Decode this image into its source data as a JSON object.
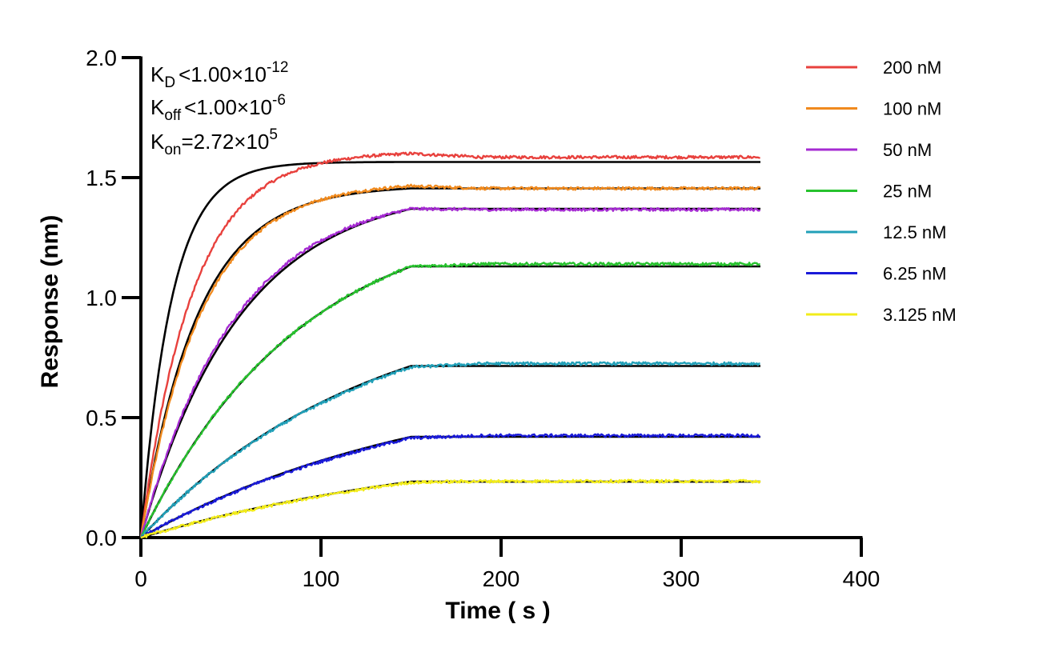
{
  "chart_data": {
    "type": "line",
    "title": "",
    "xlabel": "Time ( s )",
    "ylabel": "Response (nm)",
    "xlim": [
      0,
      400
    ],
    "ylim": [
      0,
      2.0
    ],
    "x_ticks": [
      0,
      100,
      200,
      300,
      400
    ],
    "x_tick_labels": [
      "0",
      "100",
      "200",
      "300",
      "400"
    ],
    "y_ticks": [
      0,
      0.5,
      1.0,
      1.5,
      2.0
    ],
    "y_tick_labels": [
      "0.0",
      "0.5",
      "1.0",
      "1.5",
      "2.0"
    ],
    "grid": false,
    "legend_position": "top-right",
    "association_end": 150,
    "x_end": 344,
    "annotations": {
      "kd": {
        "main": "K",
        "sub": "D",
        "rel": "<",
        "value": "1.00×10",
        "exp": "-12"
      },
      "koff": {
        "main": "K",
        "sub": "off",
        "rel": "<",
        "value": "1.00×10",
        "exp": "-6"
      },
      "kon": {
        "main": "K",
        "sub": "on",
        "rel": "=",
        "value": "2.72×10",
        "exp": "5"
      }
    },
    "fit_color": "#000000",
    "series": [
      {
        "name": "200 nM",
        "color": "#e8413d",
        "plateau_fit": 1.565,
        "plateau_data": 1.585,
        "k_fit": 0.0589,
        "k_data": 0.035,
        "data_peak": 1.6
      },
      {
        "name": "100 nM",
        "color": "#f08a1e",
        "plateau_fit": 1.455,
        "plateau_data": 1.455,
        "k_fit": 0.0317,
        "k_data": 0.03,
        "data_peak": 1.465
      },
      {
        "name": "50 nM",
        "color": "#a52bd2",
        "plateau_fit": 1.37,
        "plateau_data": 1.367,
        "k_fit": 0.0181,
        "k_data": 0.019,
        "data_peak": 1.37
      },
      {
        "name": "25 nM",
        "color": "#27c22e",
        "plateau_fit": 1.13,
        "plateau_data": 1.14,
        "k_fit": 0.0113,
        "k_data": 0.0113,
        "data_peak": 1.13
      },
      {
        "name": "12.5 nM",
        "color": "#22a0b8",
        "plateau_fit": 0.715,
        "plateau_data": 0.725,
        "k_fit": 0.0079,
        "k_data": 0.0079,
        "data_peak": 0.71
      },
      {
        "name": "6.25 nM",
        "color": "#1a1ad8",
        "plateau_fit": 0.42,
        "plateau_data": 0.425,
        "k_fit": 0.0062,
        "k_data": 0.0062,
        "data_peak": 0.415
      },
      {
        "name": "3.125 nM",
        "color": "#f2ec1a",
        "plateau_fit": 0.233,
        "plateau_data": 0.235,
        "k_fit": 0.0053,
        "k_data": 0.0053,
        "data_peak": 0.23
      }
    ]
  }
}
